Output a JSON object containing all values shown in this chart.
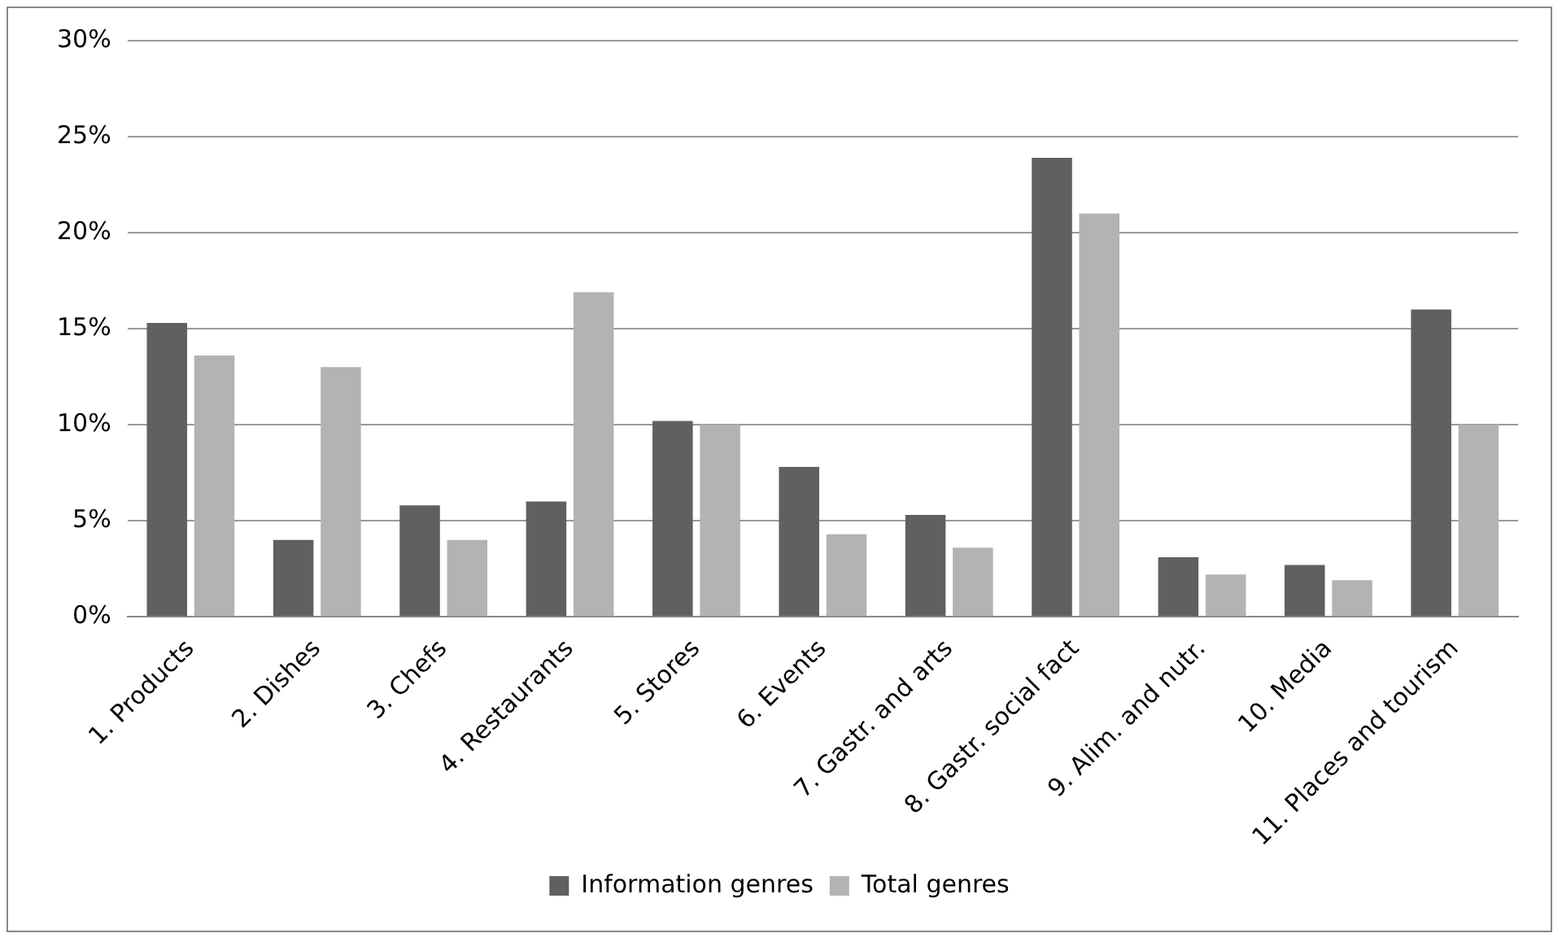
{
  "chart_data": {
    "type": "bar",
    "categories": [
      "1. Products",
      "2. Dishes",
      "3. Chefs",
      "4. Restaurants",
      "5. Stores",
      "6. Events",
      "7. Gastr. and arts",
      "8. Gastr. social fact",
      "9. Alim. and nutr.",
      "10. Media",
      "11. Places and tourism"
    ],
    "series": [
      {
        "name": "Information genres",
        "color": "#606060",
        "values": [
          15.3,
          4.0,
          5.8,
          6.0,
          10.2,
          7.8,
          5.3,
          23.9,
          3.1,
          2.7,
          16.0
        ]
      },
      {
        "name": "Total genres",
        "color": "#b3b3b3",
        "values": [
          13.6,
          13.0,
          4.0,
          16.9,
          10.0,
          4.3,
          3.6,
          21.0,
          2.2,
          1.9,
          10.0
        ]
      }
    ],
    "ylim": [
      0,
      30
    ],
    "yticks": [
      {
        "value": 0,
        "label": "0%"
      },
      {
        "value": 5,
        "label": "5%"
      },
      {
        "value": 10,
        "label": "10%"
      },
      {
        "value": 15,
        "label": "15%"
      },
      {
        "value": 20,
        "label": "20%"
      },
      {
        "value": 25,
        "label": "25%"
      },
      {
        "value": 30,
        "label": "30%"
      }
    ],
    "grid": "y",
    "legend": "bottom"
  }
}
